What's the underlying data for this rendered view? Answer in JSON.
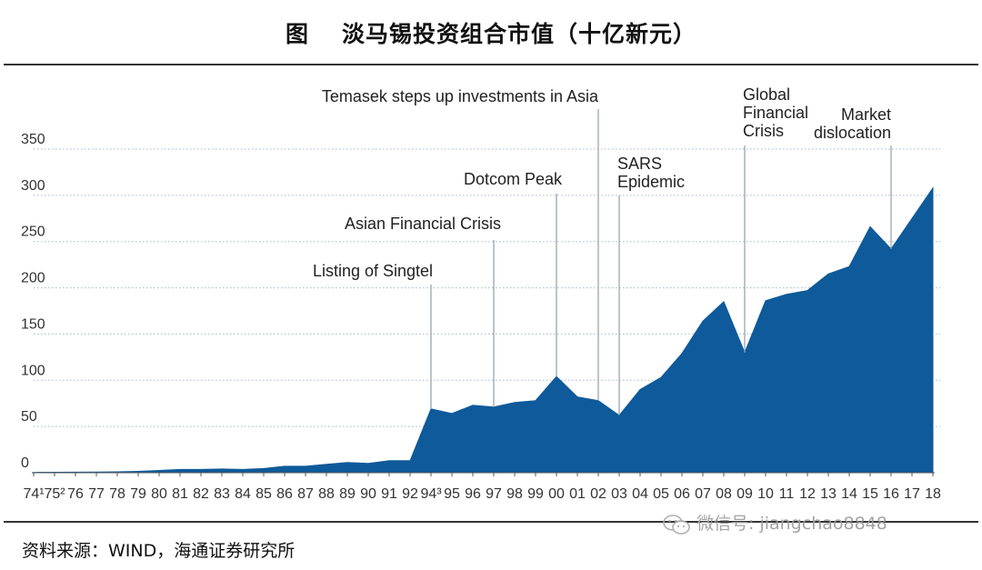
{
  "header": {
    "fig_label": "图",
    "title": "淡马锡投资组合市值（十亿新元）"
  },
  "footer": {
    "source": "资料来源：WIND，海通证券研究所",
    "watermark": "微信号: jiangchao8848"
  },
  "colors": {
    "area": "#0e5a9a",
    "grid": "#9fb8cc",
    "callout": "#9aa4ad",
    "rule": "#333333"
  },
  "chart_data": {
    "type": "area",
    "ylim": [
      0,
      350
    ],
    "yticks": [
      0,
      50,
      100,
      150,
      200,
      250,
      300,
      350
    ],
    "grid": "horizontal dotted",
    "x_labels": [
      "74¹",
      "75²",
      "76",
      "77",
      "78",
      "79",
      "80",
      "81",
      "82",
      "83",
      "84",
      "85",
      "86",
      "87",
      "88",
      "89",
      "90",
      "91",
      "92",
      "94³",
      "95",
      "96",
      "97",
      "98",
      "99",
      "00",
      "01",
      "02",
      "03",
      "04",
      "05",
      "06",
      "07",
      "08",
      "09",
      "10",
      "11",
      "12",
      "13",
      "14",
      "15",
      "16",
      "17",
      "18"
    ],
    "values": [
      0.4,
      0.5,
      0.6,
      0.8,
      1,
      1.5,
      2.5,
      3.5,
      3.5,
      4,
      3.5,
      4.5,
      7,
      7,
      9,
      11,
      10,
      13,
      13,
      69,
      64,
      73,
      71,
      76,
      78,
      104,
      82,
      78,
      62,
      90,
      103,
      129,
      164,
      185,
      130,
      186,
      193,
      197,
      215,
      223,
      266,
      242,
      275,
      308
    ],
    "annotations": [
      {
        "text": "Listing of Singtel",
        "at": "94³"
      },
      {
        "text": "Asian Financial Crisis",
        "at": "97"
      },
      {
        "text": "Dotcom Peak",
        "at": "00"
      },
      {
        "text": "Temasek steps up investments in Asia",
        "at": "02"
      },
      {
        "text": "SARS Epidemic",
        "at": "03"
      },
      {
        "text": "Global Financial Crisis",
        "at": "09"
      },
      {
        "text": "Market dislocation",
        "at": "16"
      }
    ]
  }
}
